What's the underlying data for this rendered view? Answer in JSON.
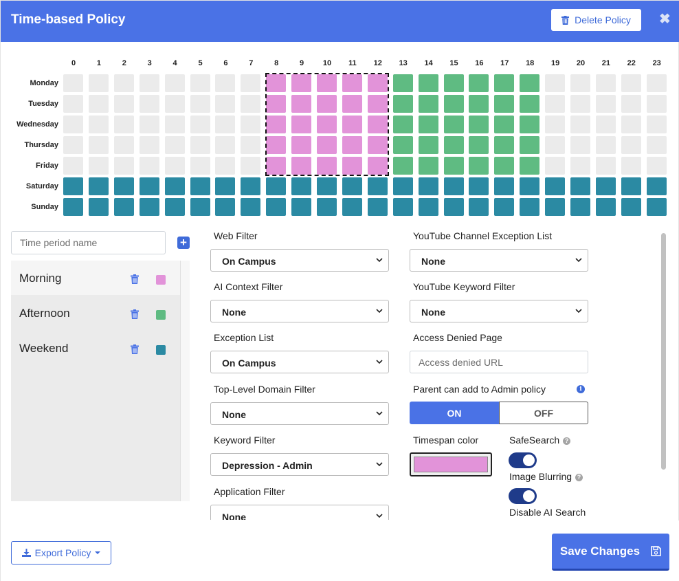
{
  "header": {
    "title": "Time-based Policy",
    "delete_label": "Delete Policy",
    "close_glyph": "✖"
  },
  "schedule": {
    "hours": [
      "0",
      "1",
      "2",
      "3",
      "4",
      "5",
      "6",
      "7",
      "8",
      "9",
      "10",
      "11",
      "12",
      "13",
      "14",
      "15",
      "16",
      "17",
      "18",
      "19",
      "20",
      "21",
      "22",
      "23"
    ],
    "days": [
      "Monday",
      "Tuesday",
      "Wednesday",
      "Thursday",
      "Friday",
      "Saturday",
      "Sunday"
    ],
    "assignments": {
      "weekday_morning_hours": [
        8,
        9,
        10,
        11,
        12
      ],
      "weekday_afternoon_hours": [
        13,
        14,
        15,
        16,
        17,
        18
      ],
      "weekend_days": [
        "Saturday",
        "Sunday"
      ]
    },
    "selected": {
      "days": [
        "Monday",
        "Tuesday",
        "Wednesday",
        "Thursday",
        "Friday"
      ],
      "hours": [
        8,
        9,
        10,
        11,
        12
      ]
    }
  },
  "time_periods": {
    "input_placeholder": "Time period name",
    "add_glyph": "+",
    "items": [
      {
        "name": "Morning",
        "color": "#e293d9",
        "active": true
      },
      {
        "name": "Afternoon",
        "color": "#5fbb82",
        "active": false
      },
      {
        "name": "Weekend",
        "color": "#2b8aa3",
        "active": false
      }
    ]
  },
  "settings": {
    "web_filter": {
      "label": "Web Filter",
      "value": "On Campus"
    },
    "ai_context_filter": {
      "label": "AI Context Filter",
      "value": "None"
    },
    "exception_list": {
      "label": "Exception List",
      "value": "On Campus"
    },
    "tld_filter": {
      "label": "Top-Level Domain Filter",
      "value": "None"
    },
    "keyword_filter": {
      "label": "Keyword Filter",
      "value": "Depression - Admin"
    },
    "application_filter": {
      "label": "Application Filter",
      "value": "None"
    },
    "youtube_channel_exception": {
      "label": "YouTube Channel Exception List",
      "value": "None"
    },
    "youtube_keyword_filter": {
      "label": "YouTube Keyword Filter",
      "value": "None"
    },
    "access_denied_page": {
      "label": "Access Denied Page",
      "placeholder": "Access denied URL"
    },
    "parent_can_add": {
      "label": "Parent can add to Admin policy",
      "on_label": "ON",
      "off_label": "OFF",
      "state": "ON"
    },
    "timespan_color": {
      "label": "Timespan color",
      "value": "#e293d9"
    },
    "safesearch": {
      "label": "SafeSearch",
      "enabled": true
    },
    "image_blurring": {
      "label": "Image Blurring",
      "enabled": true
    },
    "disable_ai_search": {
      "label": "Disable AI Search"
    }
  },
  "footer": {
    "export_label": "Export Policy",
    "save_label": "Save Changes"
  },
  "colors": {
    "accent": "#4a72e6",
    "morning": "#e293d9",
    "afternoon": "#5fbb82",
    "weekend": "#2b8aa3",
    "empty_cell": "#ebebeb"
  }
}
